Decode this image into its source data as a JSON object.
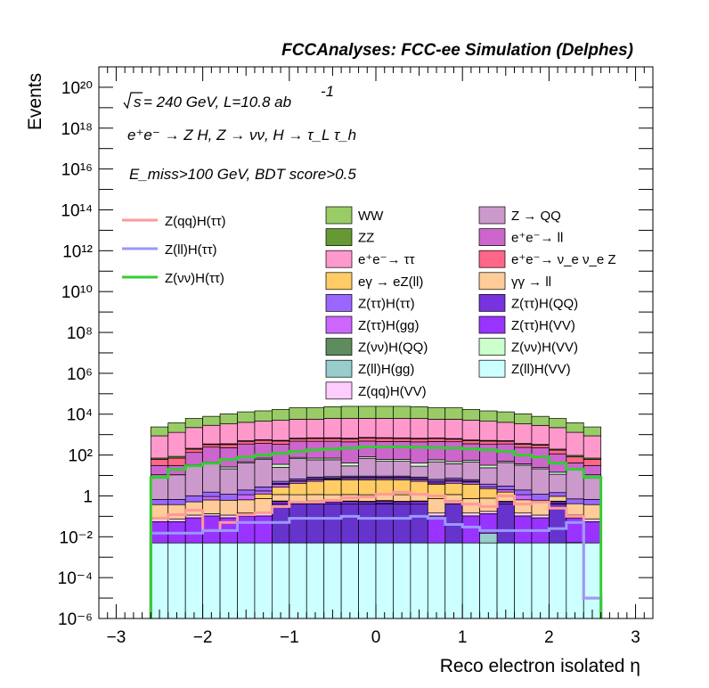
{
  "header": "FCCAnalyses: FCC-ee Simulation (Delphes)",
  "annotations": {
    "energy": "= 240 GeV, L=10.8 ab",
    "energy_sqrt": "s",
    "energy_exp": "-1",
    "process": "e⁺e⁻ → Z H, Z → νν, H → τ_L τ_h",
    "selection": "E_miss>100 GeV, BDT score>0.5"
  },
  "chart_data": {
    "type": "bar",
    "stacked": true,
    "xlabel": "Reco electron isolated η",
    "ylabel": "Events",
    "xlim": [
      -3.2,
      3.2
    ],
    "ylog": true,
    "ylim_exp": [
      -6,
      21
    ],
    "x_ticks": [
      "−3",
      "−2",
      "−1",
      "0",
      "1",
      "2",
      "3"
    ],
    "x_tick_values": [
      -3,
      -2,
      -1,
      0,
      1,
      2,
      3
    ],
    "y_ticks": [
      "10⁻⁶",
      "10⁻⁴",
      "10⁻²",
      "1",
      "10²",
      "10⁴",
      "10⁶",
      "10⁸",
      "10¹⁰",
      "10¹²",
      "10¹⁴",
      "10¹⁶",
      "10¹⁸",
      "10²⁰"
    ],
    "y_tick_exps": [
      -6,
      -4,
      -2,
      0,
      2,
      4,
      6,
      8,
      10,
      12,
      14,
      16,
      18,
      20
    ],
    "bin_edges": [
      -2.6,
      -2.4,
      -2.2,
      -2.0,
      -1.8,
      -1.6,
      -1.4,
      -1.2,
      -1.0,
      -0.8,
      -0.6,
      -0.4,
      -0.2,
      0.0,
      0.2,
      0.4,
      0.6,
      0.8,
      1.0,
      1.2,
      1.4,
      1.6,
      1.8,
      2.0,
      2.2,
      2.4,
      2.6
    ],
    "stack_series": [
      {
        "name": "Z(ll)H(VV)",
        "color": "#ccffff",
        "values": [
          0.005,
          0.005,
          0.005,
          0.005,
          0.005,
          0.005,
          0.005,
          0.005,
          0.005,
          0.005,
          0.005,
          0.005,
          0.005,
          0.005,
          0.005,
          0.005,
          0.005,
          0.005,
          0.005,
          0.005,
          0.005,
          0.005,
          0.005,
          0.005,
          0.005,
          0.005
        ]
      },
      {
        "name": "Z(ττ)H(ττ)",
        "color": "#6633cc",
        "values": [
          0,
          0,
          0,
          0,
          0,
          0,
          0,
          0.4,
          0.4,
          0.4,
          0.4,
          0.4,
          0.4,
          0.4,
          0.4,
          0.4,
          0,
          0.4,
          0,
          0,
          0.4,
          0,
          0,
          0.4,
          0,
          0
        ]
      },
      {
        "name": "Z(νν)H(QQ)",
        "color": "#5e8c5e",
        "values": [
          0,
          0,
          0,
          0,
          0,
          0,
          0,
          0,
          0,
          0,
          0,
          0,
          0,
          0.03,
          0,
          0,
          0,
          0,
          0,
          0,
          0,
          0,
          0,
          0.02,
          0.0002,
          0
        ]
      },
      {
        "name": "Z(ll)H(gg)",
        "color": "#99cccc",
        "values": [
          0,
          0,
          0,
          0,
          0,
          0,
          0,
          0,
          0,
          0,
          0,
          0,
          0,
          0,
          0,
          0,
          0,
          0,
          0,
          0.01,
          0,
          0,
          0,
          0,
          0,
          0
        ]
      },
      {
        "name": "Z(ττ)H(VV)",
        "color": "#9933ff",
        "values": [
          0.05,
          0.05,
          0.08,
          0.1,
          0.08,
          0.1,
          0.1,
          0.12,
          0.1,
          0.12,
          0.1,
          0.12,
          0.1,
          0.12,
          0.1,
          0.12,
          0.1,
          0.12,
          0.1,
          0.12,
          0.1,
          0.1,
          0.08,
          0.1,
          0.08,
          0.05
        ]
      },
      {
        "name": "Z(qq)H(VV)",
        "color": "#ffccff",
        "values": [
          0.02,
          0.02,
          0.03,
          0.03,
          0.03,
          0.04,
          0.04,
          0.04,
          0.04,
          0.04,
          0.04,
          0.04,
          0.04,
          0.04,
          0.04,
          0.04,
          0.04,
          0.04,
          0.04,
          0.04,
          0.04,
          0.04,
          0.03,
          0.03,
          0.03,
          0.02
        ]
      },
      {
        "name": "γγ → ll",
        "color": "#ffcc99",
        "values": [
          0.3,
          0.3,
          0.4,
          0.5,
          0.5,
          0.5,
          0.6,
          0.6,
          0.6,
          0.6,
          0.6,
          0.6,
          0.6,
          0.6,
          0.6,
          0.6,
          0.6,
          0.6,
          0.6,
          0.6,
          0.5,
          0.5,
          0.5,
          0.4,
          0.3,
          0.3
        ]
      },
      {
        "name": "eγ → eZ(ll)",
        "color": "#ffcc66",
        "values": [
          0,
          0,
          0,
          0,
          0,
          0,
          0.5,
          1.5,
          3,
          4,
          5,
          5,
          5,
          5,
          5,
          4,
          3,
          3,
          3,
          1.5,
          0.5,
          0,
          0,
          0,
          0,
          0
        ]
      },
      {
        "name": "Z(ττ)H(gg)",
        "color": "#cc66ff",
        "values": [
          0,
          0,
          0,
          0.3,
          0,
          0.5,
          0.5,
          1,
          1,
          1,
          0.5,
          1,
          1,
          1,
          1,
          1,
          0.5,
          1,
          1,
          0.5,
          0.5,
          0.5,
          0,
          0,
          0,
          0
        ]
      },
      {
        "name": "Z(ττ)H(QQ)",
        "color": "#7733dd",
        "values": [
          0,
          0,
          0,
          0,
          0,
          0,
          0,
          0.5,
          0.5,
          1,
          1,
          1,
          1,
          1,
          1,
          1,
          1,
          1,
          0.5,
          0,
          0,
          0,
          0,
          0,
          0,
          0
        ]
      },
      {
        "name": "Z(ττ)H(ττ)",
        "color": "#9966ff",
        "values": [
          0.3,
          0.3,
          0.5,
          0.6,
          0.6,
          0.8,
          1,
          1,
          1.2,
          1.2,
          1.2,
          1.2,
          1.2,
          1.2,
          1.2,
          1.2,
          1.2,
          1.2,
          1,
          1,
          1,
          0.8,
          0.6,
          0.5,
          0.3,
          0.3
        ]
      },
      {
        "name": "Z → QQ",
        "color": "#cc99cc",
        "values": [
          10,
          10,
          30,
          40,
          20,
          40,
          60,
          20,
          60,
          50,
          50,
          20,
          60,
          40,
          40,
          20,
          40,
          30,
          40,
          20,
          40,
          30,
          20,
          10,
          20,
          10
        ]
      },
      {
        "name": "Z(νν)H(VV)",
        "color": "#ccffcc",
        "values": [
          0.2,
          0.2,
          3,
          3,
          5,
          5,
          8,
          10,
          10,
          12,
          12,
          12,
          12,
          12,
          12,
          12,
          12,
          10,
          10,
          8,
          6,
          5,
          3,
          3,
          0.2,
          0.2
        ]
      },
      {
        "name": "e⁺e⁻→ ll",
        "color": "#cc66cc",
        "values": [
          20,
          20,
          100,
          200,
          200,
          300,
          300,
          300,
          400,
          400,
          400,
          400,
          400,
          400,
          400,
          400,
          400,
          400,
          300,
          300,
          300,
          200,
          200,
          100,
          20,
          20
        ]
      },
      {
        "name": "e⁺e⁻→ ν_e ν_e Z",
        "color": "#ff6688",
        "values": [
          30,
          40,
          60,
          80,
          100,
          120,
          150,
          150,
          150,
          180,
          180,
          180,
          200,
          200,
          180,
          180,
          180,
          150,
          150,
          150,
          120,
          100,
          80,
          60,
          40,
          30
        ]
      },
      {
        "name": "ZZ",
        "color": "#669933",
        "values": [
          10,
          15,
          20,
          25,
          30,
          35,
          40,
          40,
          45,
          45,
          45,
          45,
          45,
          45,
          45,
          45,
          45,
          45,
          40,
          40,
          35,
          30,
          25,
          20,
          15,
          10
        ]
      },
      {
        "name": "e⁺e⁻→ ττ",
        "color": "#ff99cc",
        "values": [
          800,
          1200,
          2000,
          2500,
          3000,
          3500,
          4000,
          4500,
          5000,
          5000,
          5500,
          5500,
          5500,
          5500,
          5500,
          5500,
          5000,
          5000,
          4500,
          4000,
          3500,
          3000,
          2500,
          2000,
          1200,
          800
        ]
      },
      {
        "name": "WW",
        "color": "#99cc66",
        "values": [
          1500,
          2500,
          4000,
          5000,
          7000,
          9000,
          10000,
          12000,
          15000,
          15000,
          17000,
          18000,
          18000,
          18000,
          18000,
          17000,
          15000,
          15000,
          12000,
          10000,
          9000,
          7000,
          5000,
          4000,
          2500,
          1500
        ]
      }
    ],
    "line_series": [
      {
        "name": "Z(qq)H(ττ)",
        "color": "#ff9999",
        "values": [
          0.08,
          0.12,
          0.2,
          0.02,
          0.05,
          0.12,
          0.15,
          0.3,
          0.5,
          0.5,
          0.6,
          0.8,
          0.9,
          1.2,
          1.5,
          1.2,
          1.0,
          0.5,
          0.4,
          0.3,
          1.0,
          0.4,
          0.5,
          0.25,
          0.1,
          1e-05
        ]
      },
      {
        "name": "Z(ll)H(ττ)",
        "color": "#9999ff",
        "values": [
          0.015,
          0.015,
          0.015,
          0.02,
          0.02,
          0.05,
          0.05,
          0.05,
          0.08,
          0.08,
          0.08,
          0.1,
          0.08,
          0.08,
          0.08,
          0.1,
          0.08,
          0.04,
          0.03,
          0.02,
          0.02,
          0.02,
          0.02,
          0.025,
          0.05,
          1e-05
        ]
      },
      {
        "name": "Z(νν)H(ττ)",
        "color": "#33cc33",
        "values": [
          8,
          20,
          30,
          40,
          60,
          80,
          100,
          120,
          150,
          180,
          200,
          220,
          250,
          250,
          250,
          240,
          230,
          220,
          200,
          180,
          150,
          100,
          80,
          40,
          20,
          8
        ]
      }
    ]
  },
  "legend_lines": [
    {
      "label": "Z(qq)H(ττ)",
      "color": "#ff9999"
    },
    {
      "label": "Z(ll)H(ττ)",
      "color": "#9999ff"
    },
    {
      "label": "Z(νν)H(ττ)",
      "color": "#33cc33"
    }
  ],
  "legend_boxes": [
    {
      "label": "WW",
      "color": "#99cc66"
    },
    {
      "label": "Z → QQ",
      "color": "#cc99cc"
    },
    {
      "label": "ZZ",
      "color": "#669933"
    },
    {
      "label": "e⁺e⁻→ ll",
      "color": "#cc66cc"
    },
    {
      "label": "e⁺e⁻→ ττ",
      "color": "#ff99cc"
    },
    {
      "label": "e⁺e⁻→ ν_e ν_e Z",
      "color": "#ff6688"
    },
    {
      "label": "eγ → eZ(ll)",
      "color": "#ffcc66"
    },
    {
      "label": "γγ → ll",
      "color": "#ffcc99"
    },
    {
      "label": "Z(ττ)H(ττ)",
      "color": "#9966ff"
    },
    {
      "label": "Z(ττ)H(QQ)",
      "color": "#7733dd"
    },
    {
      "label": "Z(ττ)H(gg)",
      "color": "#cc66ff"
    },
    {
      "label": "Z(ττ)H(VV)",
      "color": "#9933ff"
    },
    {
      "label": "Z(νν)H(QQ)",
      "color": "#5e8c5e"
    },
    {
      "label": "Z(νν)H(VV)",
      "color": "#ccffcc"
    },
    {
      "label": "Z(ll)H(gg)",
      "color": "#99cccc"
    },
    {
      "label": "Z(ll)H(VV)",
      "color": "#ccffff"
    },
    {
      "label": "Z(qq)H(VV)",
      "color": "#ffccff"
    }
  ]
}
